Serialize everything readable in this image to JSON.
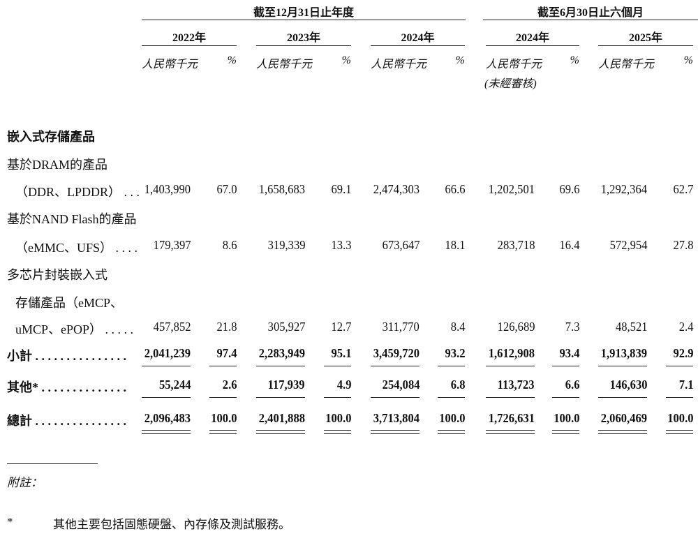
{
  "header": {
    "group_annual": "截至12月31日止年度",
    "group_half": "截至6月30日止六個月",
    "years": [
      "2022年",
      "2023年",
      "2024年",
      "2024年",
      "2025年"
    ],
    "unit_amount": "人民幣千元",
    "unit_pct": "%",
    "unaudited": "(未經審核)"
  },
  "section_title": "嵌入式存儲產品",
  "rows": [
    {
      "label": "基於DRAM的產品"
    },
    {
      "label": "（DDR、LPDDR） . . .",
      "indent": true,
      "values": [
        "1,403,990",
        "67.0",
        "1,658,683",
        "69.1",
        "2,474,303",
        "66.6",
        "1,202,501",
        "69.6",
        "1,292,364",
        "62.7"
      ]
    },
    {
      "label": "基於NAND Flash的產品"
    },
    {
      "label": "（eMMC、UFS） . . . .",
      "indent": true,
      "values": [
        "179,397",
        "8.6",
        "319,339",
        "13.3",
        "673,647",
        "18.1",
        "283,718",
        "16.4",
        "572,954",
        "27.8"
      ]
    },
    {
      "label": "多芯片封裝嵌入式"
    },
    {
      "label": "存儲產品（eMCP、",
      "indent": true
    },
    {
      "label": "uMCP、ePOP） . . . . .",
      "indent": true,
      "values": [
        "457,852",
        "21.8",
        "305,927",
        "12.7",
        "311,770",
        "8.4",
        "126,689",
        "7.3",
        "48,521",
        "2.4"
      ]
    },
    {
      "label": "小計 . . . . . . . . . . . . . . .",
      "bold": true,
      "values": [
        "2,041,239",
        "97.4",
        "2,283,949",
        "95.1",
        "3,459,720",
        "93.2",
        "1,612,908",
        "93.4",
        "1,913,839",
        "92.9"
      ],
      "underline": "single"
    },
    {
      "label": "其他* . . . . . . . . . . . . . .",
      "bold": true,
      "values": [
        "55,244",
        "2.6",
        "117,939",
        "4.9",
        "254,084",
        "6.8",
        "113,723",
        "6.6",
        "146,630",
        "7.1"
      ],
      "underline": "single"
    },
    {
      "label": "總計 . . . . . . . . . . . . . . .",
      "bold": true,
      "values": [
        "2,096,483",
        "100.0",
        "2,401,888",
        "100.0",
        "3,713,804",
        "100.0",
        "1,726,631",
        "100.0",
        "2,060,469",
        "100.0"
      ],
      "underline": "double"
    }
  ],
  "notes": {
    "heading": "附註：",
    "marker": "*",
    "text": "其他主要包括固態硬盤、內存條及測試服務。"
  }
}
